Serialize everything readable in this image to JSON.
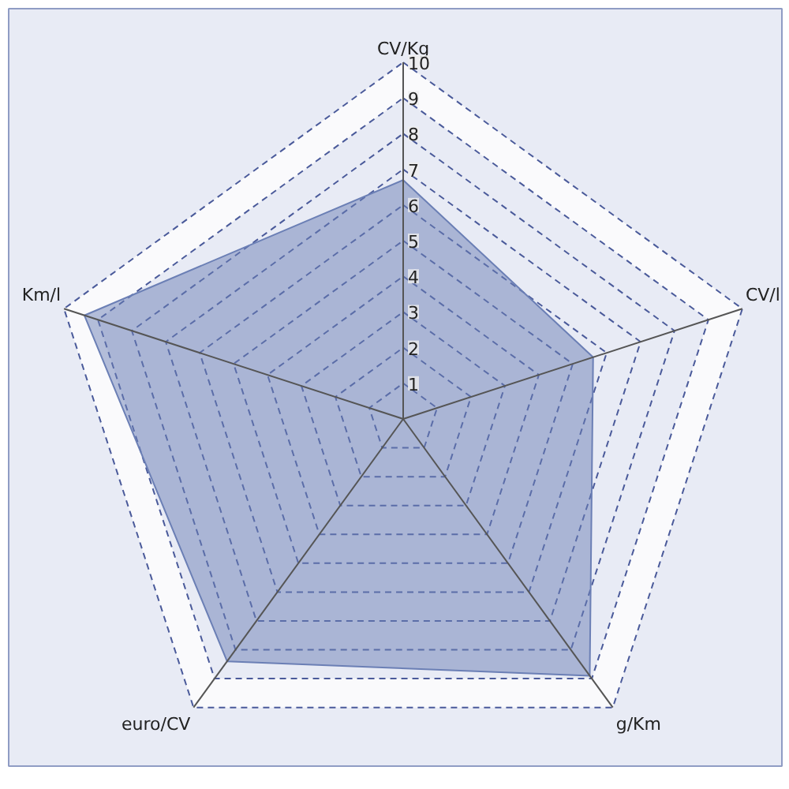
{
  "chart_data": {
    "type": "radar",
    "categories": [
      "CV/Kg",
      "CV/l",
      "g/Km",
      "euro/CV",
      "Km/l"
    ],
    "series": [
      {
        "color": "#6b7fb5",
        "values": [
          6.7,
          5.6,
          8.9,
          8.4,
          9.4
        ]
      }
    ],
    "ylim": [
      0,
      10
    ],
    "yticks": [
      1,
      2,
      3,
      4,
      5,
      6,
      7,
      8,
      9,
      10
    ],
    "grid": true
  }
}
